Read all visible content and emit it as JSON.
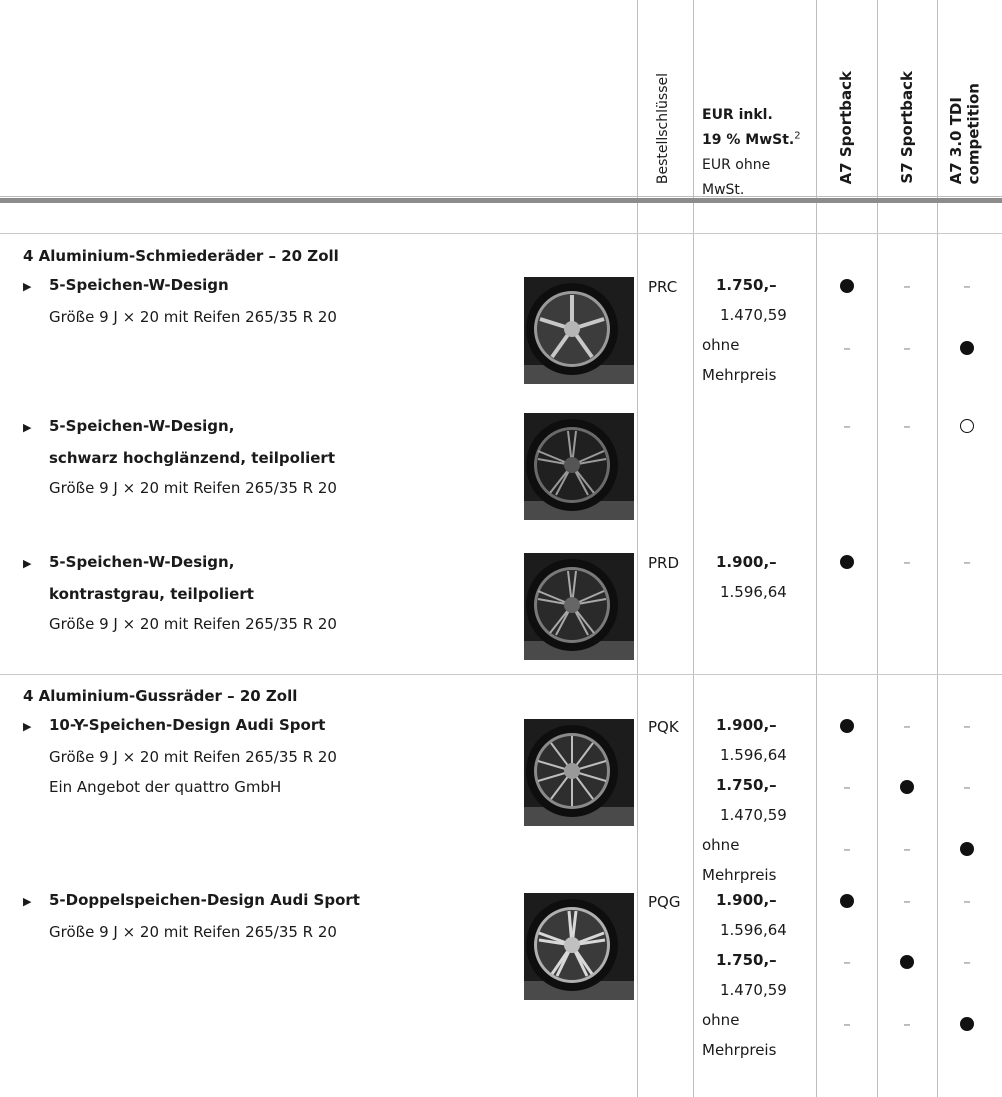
{
  "header": {
    "col_order_key": "Bestellschlüssel",
    "col_price_incl_a": "EUR inkl.",
    "col_price_incl_b": "19 % MwSt.",
    "col_price_incl_sup": "2",
    "col_price_excl_a": "EUR ohne",
    "col_price_excl_b": "MwSt.",
    "col_model_1": "A7 Sportback",
    "col_model_2": "S7 Sportback",
    "col_model_3a": "A7 3.0 TDI",
    "col_model_3b": "competition"
  },
  "groups": [
    {
      "title": "4 Aluminium-Schmiederäder – 20 Zoll",
      "items": [
        {
          "name": "5-Speichen-W-Design",
          "desc": "Größe 9 J × 20 mit Reifen 265/35 R 20",
          "code": "PRC",
          "price_incl": "1.750,–",
          "price_excl": "1.470,59",
          "no_surcharge_a": "ohne",
          "no_surcharge_b": "Mehrpreis",
          "marks_row1": [
            "●",
            "–",
            "–"
          ],
          "marks_row2": [
            "–",
            "–",
            "●"
          ]
        },
        {
          "name": "5-Speichen-W-Design,",
          "name2": "schwarz hochglänzend, teilpoliert",
          "desc": "Größe 9 J × 20 mit Reifen 265/35 R 20",
          "marks_row1": [
            "–",
            "–",
            "○"
          ]
        },
        {
          "name": "5-Speichen-W-Design,",
          "name2": "kontrastgrau, teilpoliert",
          "desc": "Größe 9 J × 20 mit Reifen 265/35 R 20",
          "code": "PRD",
          "price_incl": "1.900,–",
          "price_excl": "1.596,64",
          "marks_row1": [
            "●",
            "–",
            "–"
          ]
        }
      ]
    },
    {
      "title": "4 Aluminium-Gussräder – 20 Zoll",
      "items": [
        {
          "name": "10-Y-Speichen-Design Audi Sport",
          "desc": "Größe 9 J × 20 mit Reifen 265/35 R 20",
          "desc2": "Ein Angebot der quattro GmbH",
          "code": "PQK",
          "price_incl": "1.900,–",
          "price_excl": "1.596,64",
          "price_incl_2": "1.750,–",
          "price_excl_2": "1.470,59",
          "no_surcharge_a": "ohne",
          "no_surcharge_b": "Mehrpreis",
          "marks_row1": [
            "●",
            "–",
            "–"
          ],
          "marks_row2": [
            "–",
            "●",
            "–"
          ],
          "marks_row3": [
            "–",
            "–",
            "●"
          ]
        },
        {
          "name": "5-Doppelspeichen-Design Audi Sport",
          "desc": "Größe 9 J × 20 mit Reifen 265/35 R 20",
          "code": "PQG",
          "price_incl": "1.900,–",
          "price_excl": "1.596,64",
          "price_incl_2": "1.750,–",
          "price_excl_2": "1.470,59",
          "no_surcharge_a": "ohne",
          "no_surcharge_b": "Mehrpreis",
          "marks_row1": [
            "●",
            "–",
            "–"
          ],
          "marks_row2": [
            "–",
            "●",
            "–"
          ],
          "marks_row3": [
            "–",
            "–",
            "●"
          ]
        }
      ]
    }
  ]
}
